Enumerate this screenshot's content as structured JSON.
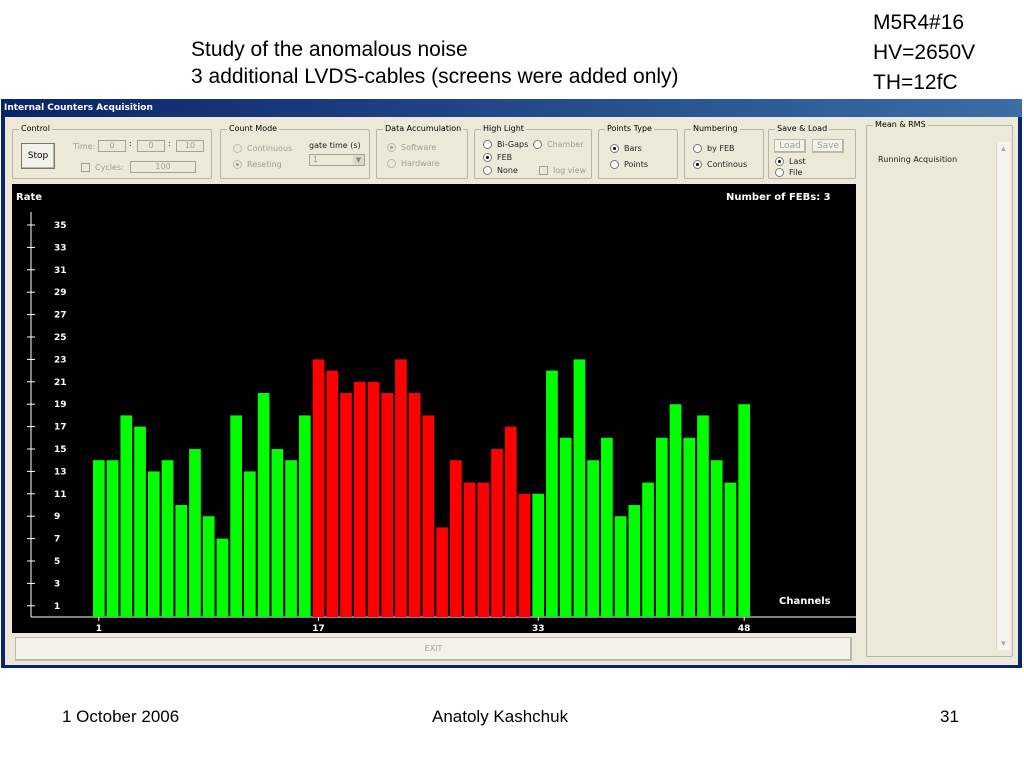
{
  "slide": {
    "title_line1": "Study of the anomalous noise",
    "title_line2": "3 additional LVDS-cables (screens were added only)",
    "meta_line1": "M5R4#16",
    "meta_line2": "HV=2650V",
    "meta_line3": "TH=12fC",
    "footer_date": "1 October 2006",
    "footer_author": "Anatoly Kashchuk",
    "footer_page": "31"
  },
  "window": {
    "title": "Internal Counters Acquisition",
    "control": {
      "label": "Control",
      "stop_button": "Stop",
      "time_label": "Time:",
      "time_h": "0",
      "time_m": "0",
      "time_s": "10",
      "colon": ":",
      "cycles_label": "Cycles:",
      "cycles_value": "100"
    },
    "count_mode": {
      "label": "Count Mode",
      "continuous": "Continuous",
      "reseting": "Reseting",
      "gate_time_label": "gate time (s)",
      "gate_time_value": "1"
    },
    "data_accumulation": {
      "label": "Data Accumulation",
      "software": "Software",
      "hardware": "Hardware"
    },
    "high_light": {
      "label": "High Light",
      "bigaps": "Bi-Gaps",
      "chamber": "Chamber",
      "feb": "FEB",
      "none": "None",
      "log_view": "log view"
    },
    "points_type": {
      "label": "Points Type",
      "bars": "Bars",
      "points": "Points"
    },
    "numbering": {
      "label": "Numbering",
      "by_feb": "by FEB",
      "continous": "Continous"
    },
    "save_load": {
      "label": "Save & Load",
      "load": "Load",
      "save": "Save",
      "last": "Last",
      "file": "File"
    },
    "mean_rms": {
      "label": "Mean & RMS",
      "status": "Running Acquisition"
    },
    "exit_button": "EXIT"
  },
  "chart_data": {
    "type": "bar",
    "ylabel": "Rate",
    "xlabel": "Channels",
    "top_label": "Number of FEBs:  3",
    "y_ticks": [
      35,
      33,
      31,
      29,
      27,
      25,
      23,
      21,
      19,
      17,
      15,
      13,
      11,
      9,
      7,
      5,
      3,
      1
    ],
    "x_ticks": [
      1,
      17,
      33,
      48
    ],
    "ylim": [
      0,
      36
    ],
    "colors": {
      "green": "#00ff00",
      "red": "#ff0000"
    },
    "highlighted_range": [
      17,
      32
    ],
    "values": [
      14,
      14,
      18,
      17,
      13,
      14,
      10,
      15,
      9,
      7,
      18,
      13,
      20,
      15,
      14,
      18,
      23,
      22,
      20,
      21,
      21,
      20,
      23,
      20,
      18,
      8,
      14,
      12,
      12,
      15,
      17,
      11,
      11,
      22,
      16,
      23,
      14,
      16,
      9,
      10,
      12,
      16,
      19,
      16,
      18,
      14,
      12,
      19
    ]
  }
}
